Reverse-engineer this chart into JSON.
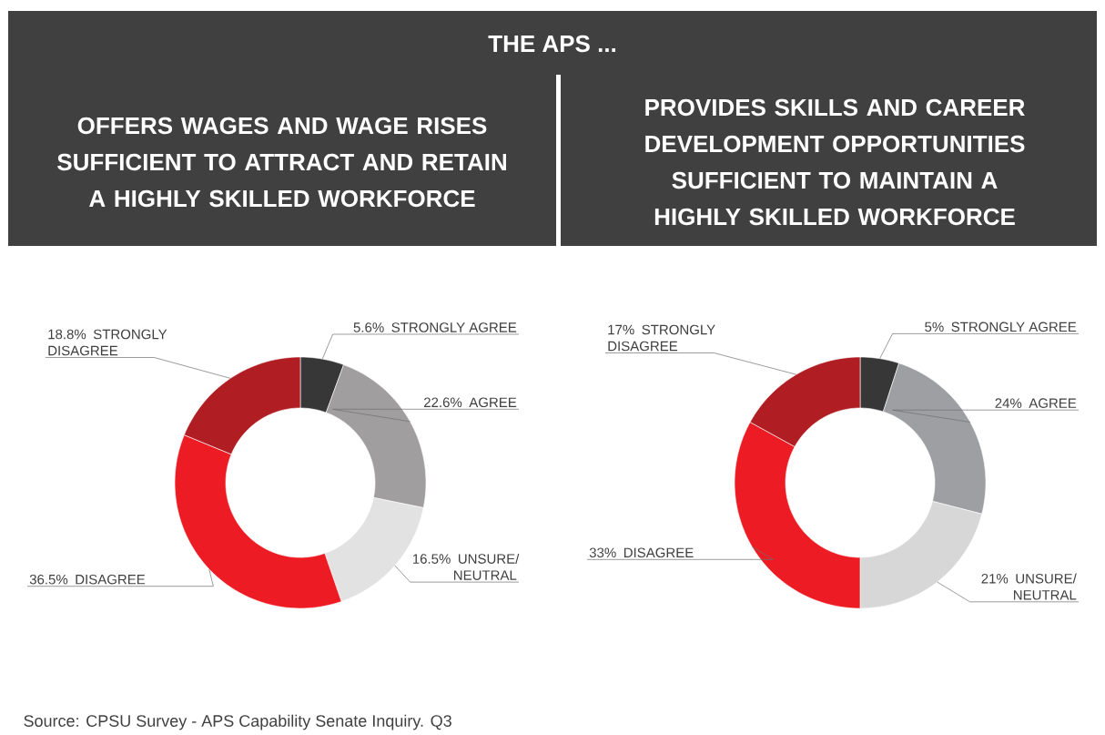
{
  "chart_data": [
    {
      "type": "donut",
      "title": "THE APS ...",
      "subtitle": "OFFERS WAGES AND WAGE RISES SUFFICIENT TO ATTRACT AND RETAIN A HIGHLY SKILLED WORKFORCE",
      "categories": [
        "STRONGLY AGREE",
        "AGREE",
        "UNSURE/ NEUTRAL",
        "DISAGREE",
        "STRONGLY DISAGREE"
      ],
      "values": [
        5.6,
        22.6,
        16.5,
        36.5,
        18.8
      ],
      "value_labels": [
        "5.6%",
        "22.6%",
        "16.5%",
        "36.5%",
        "18.8%"
      ],
      "colors": [
        "#373737",
        "#a09e9e",
        "#e2e2e2",
        "#ed1c24",
        "#b01e23"
      ],
      "annotations": [
        "Source: CPSU Survey - APS Capability Senate Inquiry. Q3"
      ]
    },
    {
      "type": "donut",
      "subtitle": "PROVIDES SKILLS AND CAREER DEVELOPMENT OPPORTUNITIES SUFFICIENT TO MAINTAIN A HIGHLY SKILLED WORKFORCE",
      "categories": [
        "STRONGLY AGREE",
        "AGREE",
        "UNSURE/ NEUTRAL",
        "DISAGREE",
        "STRONGLY DISAGREE"
      ],
      "values": [
        5,
        24,
        21,
        33,
        17
      ],
      "value_labels": [
        "5%",
        "24%",
        "21%",
        "33%",
        "17%"
      ],
      "colors": [
        "#373737",
        "#9d9fa2",
        "#d7d7d7",
        "#ed1c24",
        "#b01e23"
      ]
    }
  ]
}
